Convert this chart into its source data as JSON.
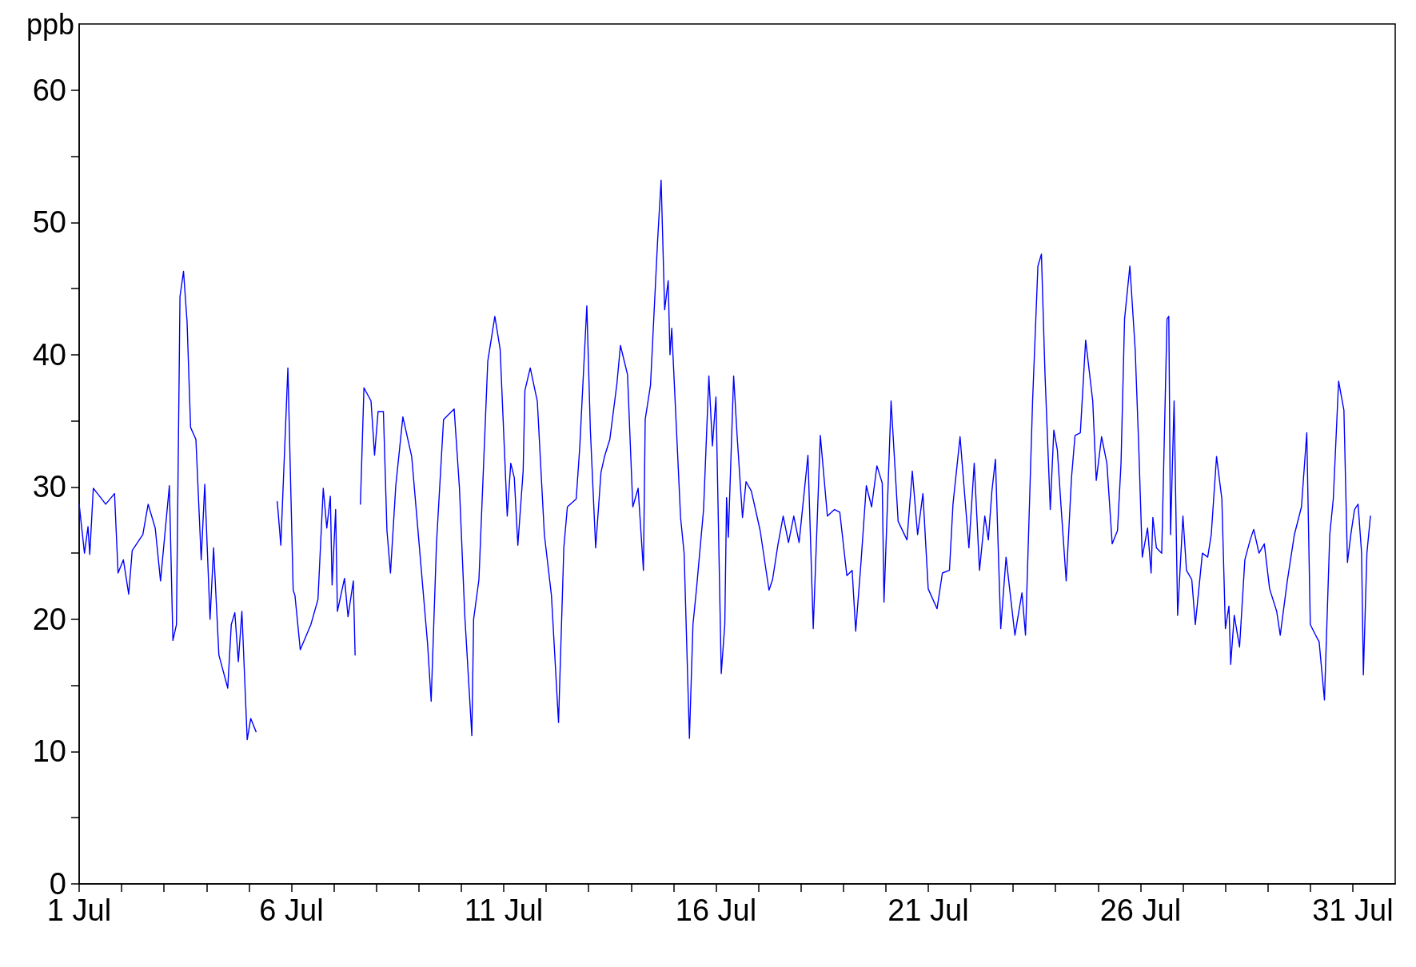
{
  "chart_data": {
    "type": "line",
    "ylabel": "ppb",
    "x": [
      "--07-01T00:00",
      "--07-01T03:00",
      "--07-01T05:00",
      "--07-01T06:00",
      "--07-01T08:00",
      "--07-01T11:00",
      "--07-01T15:00",
      "--07-01T20:00",
      "--07-01T22:00",
      "--07-02T01:00",
      "--07-02T04:00",
      "--07-02T06:00",
      "--07-02T12:00",
      "--07-02T15:00",
      "--07-02T19:00",
      "--07-02T22:00",
      "--07-03T03:00",
      "--07-03T05:00",
      "--07-03T07:00",
      "--07-03T09:00",
      "--07-03T11:00",
      "--07-03T13:00",
      "--07-03T15:00",
      "--07-03T18:00",
      "--07-03T21:00",
      "--07-03T23:00",
      "--07-04T02:00",
      "--07-04T04:00",
      "--07-04T07:00",
      "--07-04T12:00",
      "--07-04T14:00",
      "--07-04T16:00",
      "--07-04T18:00",
      "--07-04T20:00",
      "--07-04T23:00",
      "--07-05T01:00",
      "--07-05T04:00",
      "--07-05T12:00",
      "--07-05T16:00",
      "--07-05T18:00",
      "--07-05T22:00",
      "--07-06T01:00",
      "--07-06T02:00",
      "--07-06T05:00",
      "--07-06T11:00",
      "--07-06T15:00",
      "--07-06T18:00",
      "--07-06T20:00",
      "--07-06T22:00",
      "--07-06T23:00",
      "--07-07T01:00",
      "--07-07T02:00",
      "--07-07T06:00",
      "--07-07T08:00",
      "--07-07T11:00",
      "--07-07T12:00",
      "--07-07T13:00",
      "--07-07T15:00",
      "--07-07T17:00",
      "--07-07T21:00",
      "--07-07T23:00",
      "--07-08T01:00",
      "--07-08T04:00",
      "--07-08T06:00",
      "--07-08T08:00",
      "--07-08T11:00",
      "--07-08T15:00",
      "--07-08T20:00",
      "--07-09T00:00",
      "--07-09T05:00",
      "--07-09T07:00",
      "--07-09T10:00",
      "--07-09T14:00",
      "--07-09T20:00",
      "--07-09T23:00",
      "--07-10T02:00",
      "--07-10T06:00",
      "--07-10T07:00",
      "--07-10T10:00",
      "--07-10T15:00",
      "--07-10T19:00",
      "--07-10T22:00",
      "--07-11T02:00",
      "--07-11T04:00",
      "--07-11T06:00",
      "--07-11T08:00",
      "--07-11T11:00",
      "--07-11T12:00",
      "--07-11T15:00",
      "--07-11T19:00",
      "--07-11T23:00",
      "--07-12T03:00",
      "--07-12T07:00",
      "--07-12T10:00",
      "--07-12T12:00",
      "--07-12T17:00",
      "--07-12T19:00",
      "--07-12T23:00",
      "--07-13T01:00",
      "--07-13T04:00",
      "--07-13T07:00",
      "--07-13T09:00",
      "--07-13T12:00",
      "--07-13T16:00",
      "--07-13T18:00",
      "--07-13T22:00",
      "--07-14T01:00",
      "--07-14T04:00",
      "--07-14T07:00",
      "--07-14T08:00",
      "--07-14T11:00",
      "--07-14T15:00",
      "--07-14T17:00",
      "--07-14T19:00",
      "--07-14T21:00",
      "--07-14T22:00",
      "--07-14T23:00",
      "--07-15T04:00",
      "--07-15T06:00",
      "--07-15T09:00",
      "--07-15T11:00",
      "--07-15T13:00",
      "--07-15T17:00",
      "--07-15T20:00",
      "--07-15T22:00",
      "--07-16T00:00",
      "--07-16T02:00",
      "--07-16T03:00",
      "--07-16T05:00",
      "--07-16T06:00",
      "--07-16T07:00",
      "--07-16T10:00",
      "--07-16T12:00",
      "--07-16T15:00",
      "--07-16T17:00",
      "--07-16T20:00",
      "--07-17T01:00",
      "--07-17T06:00",
      "--07-17T08:00",
      "--07-17T11:00",
      "--07-17T14:00",
      "--07-17T17:00",
      "--07-17T20:00",
      "--07-17T23:00",
      "--07-18T04:00",
      "--07-18T07:00",
      "--07-18T11:00",
      "--07-18T15:00",
      "--07-18T19:00",
      "--07-18T22:00",
      "--07-19T02:00",
      "--07-19T05:00",
      "--07-19T07:00",
      "--07-19T10:00",
      "--07-19T13:00",
      "--07-19T16:00",
      "--07-19T19:00",
      "--07-19T22:00",
      "--07-19T23:00",
      "--07-20T03:00",
      "--07-20T07:00",
      "--07-20T12:00",
      "--07-20T15:00",
      "--07-20T18:00",
      "--07-20T21:00",
      "--07-21T00:00",
      "--07-21T05:00",
      "--07-21T08:00",
      "--07-21T12:00",
      "--07-21T14:00",
      "--07-21T18:00",
      "--07-21T23:00",
      "--07-22T02:00",
      "--07-22T05:00",
      "--07-22T08:00",
      "--07-22T10:00",
      "--07-22T12:00",
      "--07-22T14:00",
      "--07-22T17:00",
      "--07-22T20:00",
      "--07-23T01:00",
      "--07-23T05:00",
      "--07-23T07:00",
      "--07-23T11:00",
      "--07-23T14:00",
      "--07-23T16:00",
      "--07-23T18:00",
      "--07-23T21:00",
      "--07-23T23:00",
      "--07-24T01:00",
      "--07-24T03:00",
      "--07-24T06:00",
      "--07-24T09:00",
      "--07-24T11:00",
      "--07-24T14:00",
      "--07-24T17:00",
      "--07-24T21:00",
      "--07-24T23:00",
      "--07-25T02:00",
      "--07-25T05:00",
      "--07-25T08:00",
      "--07-25T11:00",
      "--07-25T13:00",
      "--07-25T15:00",
      "--07-25T18:00",
      "--07-25T21:00",
      "--07-25T23:00",
      "--07-26T01:00",
      "--07-26T04:00",
      "--07-26T06:00",
      "--07-26T07:00",
      "--07-26T09:00",
      "--07-26T12:00",
      "--07-26T15:00",
      "--07-26T16:00",
      "--07-26T17:00",
      "--07-26T19:00",
      "--07-26T21:00",
      "--07-27T00:00",
      "--07-27T02:00",
      "--07-27T05:00",
      "--07-27T07:00",
      "--07-27T11:00",
      "--07-27T14:00",
      "--07-27T16:00",
      "--07-27T19:00",
      "--07-27T22:00",
      "--07-28T00:00",
      "--07-28T02:00",
      "--07-28T03:00",
      "--07-28T05:00",
      "--07-28T08:00",
      "--07-28T11:00",
      "--07-28T14:00",
      "--07-28T16:00",
      "--07-28T19:00",
      "--07-28T22:00",
      "--07-29T01:00",
      "--07-29T05:00",
      "--07-29T07:00",
      "--07-29T11:00",
      "--07-29T15:00",
      "--07-29T19:00",
      "--07-29T22:00",
      "--07-30T00:00",
      "--07-30T03:00",
      "--07-30T05:00",
      "--07-30T08:00",
      "--07-30T11:00",
      "--07-30T13:00",
      "--07-30T16:00",
      "--07-30T19:00",
      "--07-30T21:00",
      "--07-30T23:00",
      "--07-31T01:00",
      "--07-31T03:00",
      "--07-31T05:00",
      "--07-31T06:00",
      "--07-31T08:00",
      "--07-31T10:00"
    ],
    "series": [
      {
        "color": "#0000ff",
        "values": [
          28.7,
          25.0,
          27.0,
          24.9,
          29.9,
          29.4,
          28.7,
          29.5,
          23.5,
          24.5,
          21.9,
          25.2,
          26.4,
          28.7,
          26.9,
          22.9,
          30.1,
          18.4,
          19.6,
          44.4,
          46.3,
          42.5,
          34.5,
          33.6,
          24.5,
          30.2,
          20.0,
          25.4,
          17.3,
          14.8,
          19.6,
          20.5,
          16.8,
          20.6,
          10.9,
          12.5,
          11.5,
          null,
          28.9,
          25.6,
          39.0,
          22.2,
          21.8,
          17.7,
          19.6,
          21.5,
          29.9,
          26.9,
          29.3,
          22.6,
          28.3,
          20.6,
          23.1,
          20.2,
          22.9,
          17.3,
          null,
          28.7,
          37.5,
          36.5,
          32.4,
          35.7,
          35.7,
          26.7,
          23.5,
          30.1,
          35.3,
          32.3,
          26.0,
          18.1,
          13.8,
          25.7,
          35.1,
          35.9,
          29.9,
          20.3,
          11.2,
          20.0,
          23.0,
          39.5,
          42.9,
          40.4,
          27.8,
          31.8,
          30.7,
          25.6,
          31.2,
          37.3,
          39.0,
          36.5,
          26.4,
          21.8,
          12.2,
          25.4,
          28.5,
          29.1,
          33.0,
          43.7,
          34.3,
          25.4,
          31.1,
          32.3,
          33.6,
          37.8,
          40.7,
          38.5,
          28.5,
          29.9,
          23.7,
          35.1,
          37.7,
          48.6,
          53.2,
          43.4,
          45.6,
          40.0,
          42.0,
          27.7,
          25.0,
          11.0,
          19.6,
          22.3,
          28.3,
          38.4,
          33.1,
          36.8,
          22.9,
          15.9,
          19.6,
          29.2,
          26.2,
          38.4,
          33.8,
          27.7,
          30.4,
          29.7,
          26.7,
          22.2,
          23.0,
          25.6,
          27.8,
          25.8,
          27.8,
          25.8,
          32.4,
          19.3,
          33.9,
          27.8,
          28.3,
          28.1,
          23.3,
          23.7,
          19.1,
          24.3,
          30.1,
          28.5,
          31.6,
          30.3,
          21.3,
          36.5,
          27.4,
          26.0,
          31.2,
          26.4,
          29.5,
          22.3,
          20.8,
          23.5,
          23.7,
          28.7,
          33.8,
          25.4,
          31.8,
          23.7,
          27.8,
          26.0,
          29.7,
          32.1,
          19.3,
          24.7,
          18.8,
          22.0,
          18.8,
          36.5,
          46.7,
          47.6,
          38.6,
          28.3,
          34.3,
          32.8,
          28.7,
          22.9,
          30.7,
          33.9,
          34.1,
          41.1,
          36.5,
          30.5,
          33.8,
          31.8,
          25.7,
          26.7,
          31.8,
          42.7,
          46.7,
          40.4,
          33.1,
          24.7,
          26.9,
          23.5,
          27.7,
          25.4,
          25.0,
          42.7,
          42.9,
          26.4,
          36.5,
          20.3,
          27.8,
          23.7,
          23.0,
          19.6,
          25.0,
          24.7,
          26.4,
          32.3,
          29.1,
          19.3,
          21.0,
          16.6,
          20.3,
          17.9,
          24.5,
          26.0,
          26.8,
          25.0,
          25.7,
          22.3,
          20.6,
          18.8,
          22.9,
          26.4,
          28.5,
          34.1,
          19.6,
          18.8,
          18.3,
          13.9,
          26.4,
          29.1,
          38.0,
          35.8,
          24.3,
          26.5,
          28.3,
          28.7,
          25.0,
          15.8,
          25.0,
          27.8
        ]
      }
    ],
    "xlim": [
      "--07-01",
      "--08-01"
    ],
    "xticks": [
      {
        "value": "--07-01",
        "label": "1 Jul"
      },
      {
        "value": "--07-02",
        "label": null
      },
      {
        "value": "--07-03",
        "label": null
      },
      {
        "value": "--07-04",
        "label": null
      },
      {
        "value": "--07-05",
        "label": null
      },
      {
        "value": "--07-06",
        "label": "6 Jul"
      },
      {
        "value": "--07-07",
        "label": null
      },
      {
        "value": "--07-08",
        "label": null
      },
      {
        "value": "--07-09",
        "label": null
      },
      {
        "value": "--07-10",
        "label": null
      },
      {
        "value": "--07-11",
        "label": "11 Jul"
      },
      {
        "value": "--07-12",
        "label": null
      },
      {
        "value": "--07-13",
        "label": null
      },
      {
        "value": "--07-14",
        "label": null
      },
      {
        "value": "--07-15",
        "label": null
      },
      {
        "value": "--07-16",
        "label": "16 Jul"
      },
      {
        "value": "--07-17",
        "label": null
      },
      {
        "value": "--07-18",
        "label": null
      },
      {
        "value": "--07-19",
        "label": null
      },
      {
        "value": "--07-20",
        "label": null
      },
      {
        "value": "--07-21",
        "label": "21 Jul"
      },
      {
        "value": "--07-22",
        "label": null
      },
      {
        "value": "--07-23",
        "label": null
      },
      {
        "value": "--07-24",
        "label": null
      },
      {
        "value": "--07-25",
        "label": null
      },
      {
        "value": "--07-26",
        "label": "26 Jul"
      },
      {
        "value": "--07-27",
        "label": null
      },
      {
        "value": "--07-28",
        "label": null
      },
      {
        "value": "--07-29",
        "label": null
      },
      {
        "value": "--07-30",
        "label": null
      },
      {
        "value": "--07-31",
        "label": "31 Jul"
      }
    ],
    "ylim": [
      0,
      65
    ],
    "yticks": [
      0,
      {
        "value": 5,
        "label": null
      },
      10,
      {
        "value": 15,
        "label": null
      },
      20,
      {
        "value": 25,
        "label": null
      },
      30,
      {
        "value": 35,
        "label": null
      },
      40,
      {
        "value": 45,
        "label": null
      },
      50,
      {
        "value": 55,
        "label": null
      },
      60
    ],
    "grid": false,
    "legend": false,
    "marker": "none",
    "line_style": "solid"
  }
}
